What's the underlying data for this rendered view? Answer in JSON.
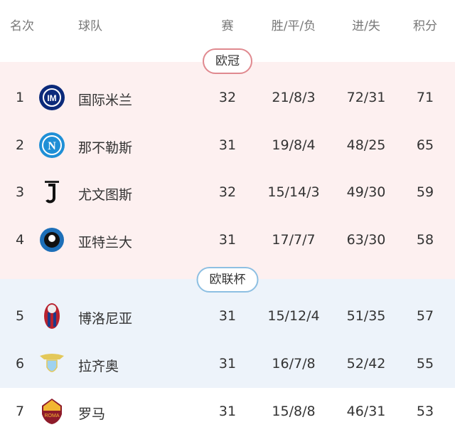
{
  "header": {
    "rank": "名次",
    "team": "球队",
    "played": "赛",
    "wdl": "胜/平/负",
    "goals": "进/失",
    "points": "积分"
  },
  "zones": {
    "ucl": {
      "label": "欧冠",
      "bg": "#fdf0f0",
      "border": "#e0898f"
    },
    "uel": {
      "label": "欧联杯",
      "bg": "#edf3fa",
      "border": "#8dbfe2"
    }
  },
  "rows": [
    {
      "rank": "1",
      "team": "国际米兰",
      "logo": "inter-logo",
      "played": "32",
      "wdl": "21/8/3",
      "goals": "72/31",
      "points": "71"
    },
    {
      "rank": "2",
      "team": "那不勒斯",
      "logo": "napoli-logo",
      "played": "31",
      "wdl": "19/8/4",
      "goals": "48/25",
      "points": "65"
    },
    {
      "rank": "3",
      "team": "尤文图斯",
      "logo": "juventus-logo",
      "played": "32",
      "wdl": "15/14/3",
      "goals": "49/30",
      "points": "59"
    },
    {
      "rank": "4",
      "team": "亚特兰大",
      "logo": "atalanta-logo",
      "played": "31",
      "wdl": "17/7/7",
      "goals": "63/30",
      "points": "58"
    },
    {
      "rank": "5",
      "team": "博洛尼亚",
      "logo": "bologna-logo",
      "played": "31",
      "wdl": "15/12/4",
      "goals": "51/35",
      "points": "57"
    },
    {
      "rank": "6",
      "team": "拉齐奥",
      "logo": "lazio-logo",
      "played": "31",
      "wdl": "16/7/8",
      "goals": "52/42",
      "points": "55"
    },
    {
      "rank": "7",
      "team": "罗马",
      "logo": "roma-logo",
      "played": "31",
      "wdl": "15/8/8",
      "goals": "46/31",
      "points": "53"
    }
  ]
}
